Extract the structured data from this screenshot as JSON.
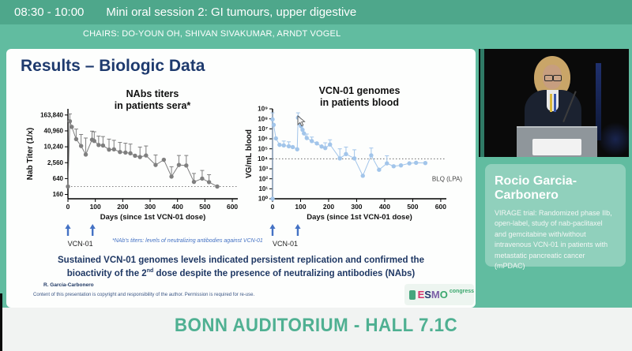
{
  "header": {
    "time": "08:30 - 10:00",
    "session_title": "Mini oral session 2: GI tumours, upper digestive",
    "chairs": "CHAIRS: DO-YOUN OH, SHIVAN SIVAKUMAR, ARNDT VOGEL"
  },
  "slide": {
    "title": "Results – Biologic Data",
    "footnote": "*NAb's titers: levels of neutralizing antibodies against VCN-01",
    "statement": {
      "line1": "Sustained VCN-01 genomes levels indicated persistent replication and confirmed the",
      "line2_pre": "bioactivity of the 2",
      "line2_sup": "nd",
      "line2_post": " dose despite the presence of neutralizing antibodies (NAbs)"
    },
    "author": "R. Garcia-Carbonero",
    "copyright": "Content of this presentation is copyright and responsibility of the author. Permission is required for re-use.",
    "logo": {
      "letters": [
        "E",
        "S",
        "M",
        "O"
      ],
      "congress": "congress"
    }
  },
  "chart_data": [
    {
      "type": "scatter",
      "title": "NAbs titers in patients sera*",
      "title_lines": [
        "NAbs titers",
        "in patients sera*"
      ],
      "xlabel": "Days (since 1st VCN-01 dose)",
      "ylabel": "Nab Titer (1/x)",
      "y_scale": "log",
      "xlim": [
        0,
        620
      ],
      "ylim": [
        110,
        280000
      ],
      "x_ticks": [
        0,
        100,
        200,
        300,
        400,
        500,
        600
      ],
      "y_ticks": [
        160,
        640,
        2560,
        10240,
        40960,
        163840
      ],
      "y_tick_labels": [
        "160",
        "640",
        "2,560",
        "10,240",
        "40,960",
        "163,840"
      ],
      "ref_line_y": 320,
      "dose_arrows_x": [
        0,
        90
      ],
      "dose_label": "VCN-01",
      "color": "#7F7F7F",
      "arrow_color": "#4472C4",
      "points": [
        [
          0,
          320,
          null
        ],
        [
          7,
          95000,
          180000
        ],
        [
          14,
          58000,
          null
        ],
        [
          30,
          20000,
          48000
        ],
        [
          48,
          11000,
          30000
        ],
        [
          65,
          5200,
          22000
        ],
        [
          88,
          19000,
          40000
        ],
        [
          96,
          17000,
          38000
        ],
        [
          112,
          12000,
          26000
        ],
        [
          128,
          11500,
          25000
        ],
        [
          150,
          8000,
          20000
        ],
        [
          168,
          8200,
          18000
        ],
        [
          190,
          6500,
          15000
        ],
        [
          210,
          6200,
          14000
        ],
        [
          228,
          5800,
          13000
        ],
        [
          245,
          4700,
          null
        ],
        [
          263,
          4200,
          10000
        ],
        [
          285,
          4800,
          11000
        ],
        [
          320,
          2100,
          5000
        ],
        [
          350,
          3300,
          null
        ],
        [
          378,
          760,
          1800
        ],
        [
          405,
          2100,
          4800
        ],
        [
          432,
          2000,
          4800
        ],
        [
          460,
          480,
          1000
        ],
        [
          490,
          640,
          1300
        ],
        [
          515,
          470,
          900
        ],
        [
          545,
          320,
          null
        ]
      ]
    },
    {
      "type": "scatter",
      "title": "VCN-01 genomes in patients blood",
      "title_lines": [
        "VCN-01 genomes",
        "in patients blood"
      ],
      "xlabel": "Days (since 1st VCN-01 dose)",
      "ylabel": "VG/mL blood",
      "y_scale": "log",
      "xlim": [
        0,
        620
      ],
      "ylim": [
        1,
        1000000000
      ],
      "x_ticks": [
        0,
        100,
        200,
        300,
        400,
        500,
        600
      ],
      "y_ticks": [
        1,
        10,
        100,
        1000,
        10000,
        100000,
        1000000,
        10000000,
        100000000,
        1000000000
      ],
      "y_tick_labels": [
        "10⁰",
        "10¹",
        "10²",
        "10³",
        "10⁴",
        "10⁵",
        "10⁶",
        "10⁷",
        "10⁸",
        "10⁹"
      ],
      "ref_line_y": 10000,
      "dose_arrows_x": [
        0,
        90
      ],
      "dose_label": "VCN-01",
      "annotation": "BLQ (LPA)",
      "annotation_y": 100,
      "color": "#A2C5EA",
      "arrow_color": "#4472C4",
      "points": [
        [
          0,
          1,
          null
        ],
        [
          0,
          90000000.0,
          400000000.0
        ],
        [
          4,
          25000000.0,
          null
        ],
        [
          12,
          1100000.0,
          null
        ],
        [
          25,
          250000.0,
          null
        ],
        [
          40,
          220000.0,
          600000.0
        ],
        [
          58,
          180000.0,
          500000.0
        ],
        [
          72,
          150000.0,
          null
        ],
        [
          88,
          90000.0,
          null
        ],
        [
          91,
          130000000.0,
          400000000.0
        ],
        [
          96,
          50000000.0,
          null
        ],
        [
          99,
          30000000.0,
          null
        ],
        [
          102,
          18000000.0,
          null
        ],
        [
          107,
          8000000.0,
          null
        ],
        [
          112,
          3500000.0,
          null
        ],
        [
          122,
          1200000.0,
          3000000.0
        ],
        [
          140,
          600000.0,
          1500000.0
        ],
        [
          158,
          350000.0,
          null
        ],
        [
          175,
          170000.0,
          null
        ],
        [
          188,
          120000.0,
          400000.0
        ],
        [
          205,
          270000.0,
          800000.0
        ],
        [
          240,
          11000.0,
          100000.0
        ],
        [
          262,
          30000.0,
          150000.0
        ],
        [
          292,
          11000.0,
          80000.0
        ],
        [
          322,
          200.0,
          null
        ],
        [
          352,
          22000.0,
          120000.0
        ],
        [
          380,
          800.0,
          null
        ],
        [
          408,
          3500.0,
          20000.0
        ],
        [
          432,
          1800.0,
          null
        ],
        [
          458,
          2200.0,
          null
        ],
        [
          488,
          3500.0,
          null
        ],
        [
          512,
          4000.0,
          null
        ],
        [
          545,
          3800.0,
          null
        ]
      ]
    }
  ],
  "speaker": {
    "name": "Rocio Garcia-Carbonero",
    "description": "VIRAGE trial: Randomized phase IIb, open-label, study of nab-paclitaxel and gemcitabine with/without intravenous VCN-01 in patients with metastatic pancreatic cancer (mPDAC)"
  },
  "footer": {
    "location": "BONN AUDITORIUM - HALL 7.1C"
  },
  "colors": {
    "topbar": "#4EA78B",
    "background": "#61BCA0",
    "slide_navy": "#1E3A6E",
    "arrow_blue": "#4472C4",
    "series_gray": "#7F7F7F",
    "series_blue": "#A2C5EA",
    "bottom_text": "#4FB092"
  }
}
